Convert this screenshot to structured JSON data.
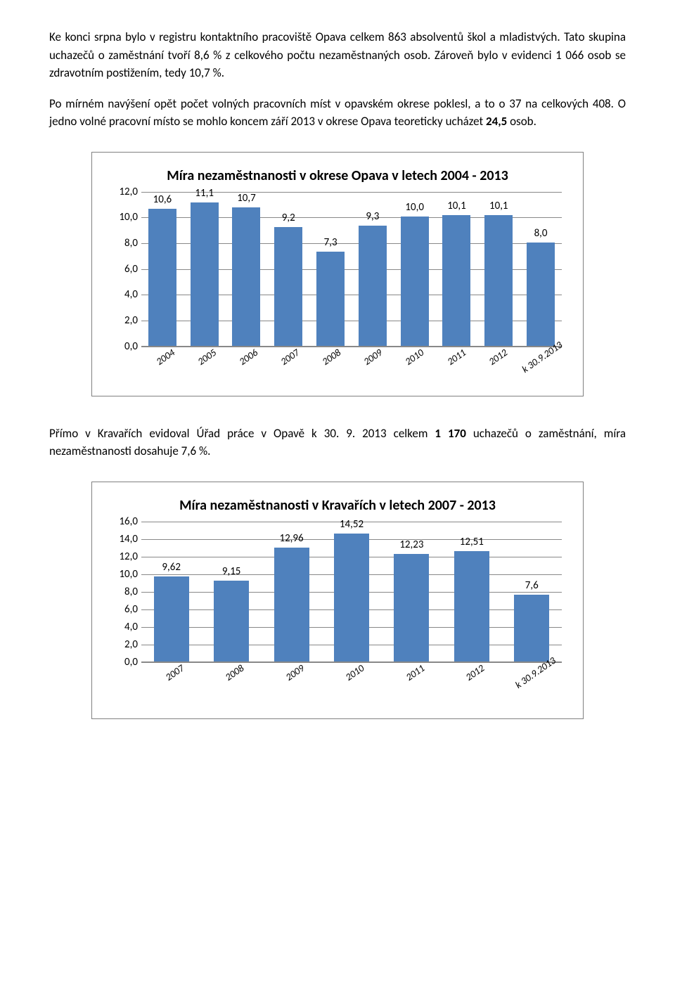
{
  "paragraphs": {
    "p1_a": "Ke konci srpna bylo v registru kontaktního pracoviště Opava celkem 863 absolventů škol a mladistvých. Tato skupina uchazečů o zaměstnání tvoří 8,6 % z celkového počtu nezaměstnaných osob. Zároveň bylo v evidenci 1 066 osob se zdravotním postižením, tedy 10,7 %.",
    "p2_a": "Po mírném navýšení opět počet volných pracovních míst v opavském okrese poklesl, a to o 37 na celkových 408. O jedno volné pracovní místo se mohlo koncem září 2013 v okrese Opava teoreticky ucházet ",
    "p2_bold": "24,5",
    "p2_b": " osob.",
    "p3_a": "Přímo v Kravařích evidoval Úřad práce v Opavě k 30. 9. 2013 celkem ",
    "p3_bold": "1 170",
    "p3_b": " uchazečů o zaměstnání, míra nezaměstnanosti dosahuje 7,6 %."
  },
  "chart1": {
    "title": "Míra nezaměstnanosti v okrese Opava v letech 2004 - 2013",
    "ymax": 12.0,
    "ytick_step": 2.0,
    "ylabels": [
      "0,0",
      "2,0",
      "4,0",
      "6,0",
      "8,0",
      "10,0",
      "12,0"
    ],
    "categories": [
      "2004",
      "2005",
      "2006",
      "2007",
      "2008",
      "2009",
      "2010",
      "2011",
      "2012",
      "k 30.9.2013"
    ],
    "values": [
      10.6,
      11.1,
      10.7,
      9.2,
      7.3,
      9.3,
      10.0,
      10.1,
      10.1,
      8.0
    ],
    "value_labels": [
      "10,6",
      "11,1",
      "10,7",
      "9,2",
      "7,3",
      "9,3",
      "10,0",
      "10,1",
      "10,1",
      "8,0"
    ],
    "bar_color": "#4f81bd",
    "grid_color": "#888888"
  },
  "chart2": {
    "title": "Míra nezaměstnanosti v Kravařích v letech 2007 - 2013",
    "ymax": 16.0,
    "ytick_step": 2.0,
    "ylabels": [
      "0,0",
      "2,0",
      "4,0",
      "6,0",
      "8,0",
      "10,0",
      "12,0",
      "14,0",
      "16,0"
    ],
    "categories": [
      "2007",
      "2008",
      "2009",
      "2010",
      "2011",
      "2012",
      "k 30.9.2013"
    ],
    "values": [
      9.62,
      9.15,
      12.96,
      14.52,
      12.23,
      12.51,
      7.6
    ],
    "value_labels": [
      "9,62",
      "9,15",
      "12,96",
      "14,52",
      "12,23",
      "12,51",
      "7,6"
    ],
    "bar_color": "#4f81bd",
    "grid_color": "#888888"
  }
}
